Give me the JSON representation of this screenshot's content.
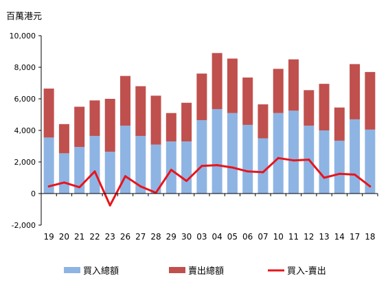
{
  "chart_data": {
    "type": "bar",
    "unit_label": "百萬港元",
    "categories": [
      "19",
      "20",
      "21",
      "22",
      "23",
      "26",
      "27",
      "28",
      "29",
      "30",
      "03",
      "04",
      "05",
      "06",
      "07",
      "10",
      "11",
      "12",
      "13",
      "14",
      "17",
      "18"
    ],
    "ylim": [
      -2000,
      10000
    ],
    "yticks": [
      -2000,
      0,
      2000,
      4000,
      6000,
      8000,
      10000
    ],
    "ytick_labels": [
      "-2,000",
      "0",
      "2,000",
      "4,000",
      "6,000",
      "8,000",
      "10,000"
    ],
    "stacked": true,
    "grid": false,
    "legend_position": "bottom",
    "series": [
      {
        "name": "買入總額",
        "kind": "bar",
        "color": "#8EB4E3",
        "values": [
          3550,
          2550,
          2950,
          3650,
          2650,
          4300,
          3650,
          3100,
          3300,
          3300,
          4650,
          5350,
          5100,
          4350,
          3500,
          5100,
          5250,
          4300,
          4000,
          3350,
          4700,
          4050
        ]
      },
      {
        "name": "賣出總額",
        "kind": "bar",
        "color": "#C0504D",
        "values": [
          3100,
          1850,
          2550,
          2250,
          3350,
          3150,
          3150,
          3100,
          1800,
          2450,
          2950,
          3550,
          3450,
          3000,
          2150,
          2800,
          3250,
          2250,
          2950,
          2100,
          3500,
          3650
        ]
      },
      {
        "name": "買入-賣出",
        "kind": "line",
        "color": "#E8141B",
        "values": [
          450,
          700,
          400,
          1400,
          -750,
          1100,
          450,
          50,
          1500,
          800,
          1750,
          1800,
          1650,
          1400,
          1350,
          2250,
          2100,
          2150,
          1000,
          1250,
          1200,
          450
        ]
      }
    ]
  }
}
